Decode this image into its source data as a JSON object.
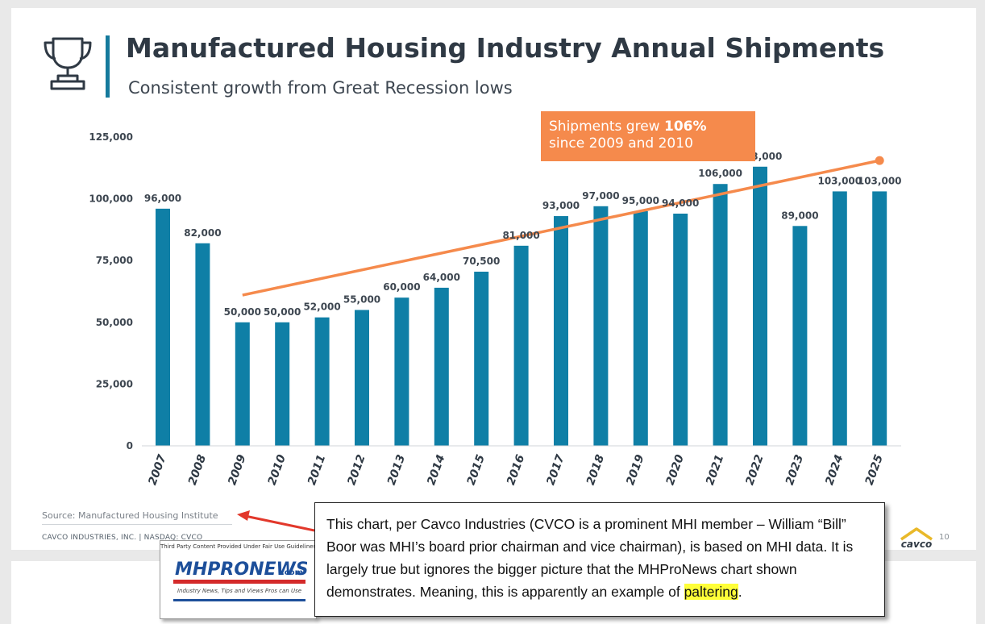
{
  "header": {
    "title": "Manufactured Housing Industry Annual Shipments",
    "subtitle": "Consistent growth from Great Recession lows"
  },
  "callout": {
    "prefix": "Shipments grew ",
    "bold": "106%",
    "line2": "since 2009 and 2010"
  },
  "footer": {
    "source": "Source:  Manufactured Housing Institute",
    "company": "CAVCO INDUSTRIES, INC.  |  NASDAQ: CVCO",
    "page_number": "10",
    "logo_text": "cavco"
  },
  "inset": {
    "fair_use": "Third Party Content Provided Under Fair Use Guidelines.",
    "logo_main": "MHPRONEWS",
    "logo_suffix": ".com",
    "tagline": "Industry News, Tips and Views Pros can Use"
  },
  "annotation": {
    "text_before": "This chart, per Cavco Industries (CVCO is a prominent MHI member – William “Bill” Boor was MHI’s board prior chairman and vice chairman), is based on MHI data. It is largely true but ignores the bigger picture that the MHProNews chart shown demonstrates. Meaning, this is apparently an example of ",
    "highlight": "paltering",
    "text_after": "."
  },
  "colors": {
    "bar": "#0f7fa6",
    "trend": "#f58a4c",
    "title": "#2f3944",
    "accent_bar": "#157a9c"
  },
  "chart_data": {
    "type": "bar",
    "categories": [
      "2007",
      "2008",
      "2009",
      "2010",
      "2011",
      "2012",
      "2013",
      "2014",
      "2015",
      "2016",
      "2017",
      "2018",
      "2019",
      "2020",
      "2021",
      "2022",
      "2023",
      "2024",
      "2025"
    ],
    "values": [
      96000,
      82000,
      50000,
      50000,
      52000,
      55000,
      60000,
      64000,
      70500,
      81000,
      93000,
      97000,
      95000,
      94000,
      106000,
      113000,
      89000,
      103000,
      103000
    ],
    "data_labels": [
      "96,000",
      "82,000",
      "50,000",
      "50,000",
      "52,000",
      "55,000",
      "60,000",
      "64,000",
      "70,500",
      "81,000",
      "93,000",
      "97,000",
      "95,000",
      "94,000",
      "106,000",
      "113,000",
      "89,000",
      "103,000",
      "103,000"
    ],
    "y_ticks": [
      0,
      25000,
      50000,
      75000,
      100000,
      125000
    ],
    "y_tick_labels": [
      "0",
      "25,000",
      "50,000",
      "75,000",
      "100,000",
      "125,000"
    ],
    "ylim": [
      0,
      125000
    ],
    "trend_line": {
      "from": [
        "2009",
        61000
      ],
      "to": [
        "2025",
        115500
      ]
    },
    "grid": false,
    "legend": "none"
  }
}
